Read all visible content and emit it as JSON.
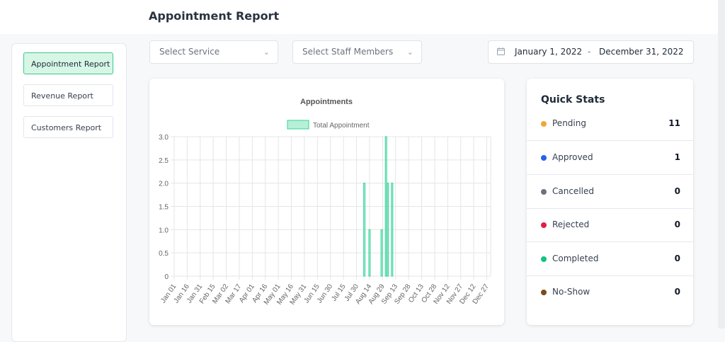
{
  "page": {
    "title": "Appointment Report"
  },
  "sidebar": {
    "items": [
      {
        "label": "Appointment Report",
        "active": true
      },
      {
        "label": "Revenue Report",
        "active": false
      },
      {
        "label": "Customers Report",
        "active": false
      }
    ]
  },
  "filters": {
    "service_placeholder": "Select Service",
    "staff_placeholder": "Select Staff Members",
    "date_start": "January 1, 2022",
    "date_separator": "-",
    "date_end": "December 31, 2022"
  },
  "quick_stats": {
    "title": "Quick Stats",
    "items": [
      {
        "label": "Pending",
        "value": "11",
        "color": "#f0a53a"
      },
      {
        "label": "Approved",
        "value": "1",
        "color": "#2563eb"
      },
      {
        "label": "Cancelled",
        "value": "0",
        "color": "#6b7280"
      },
      {
        "label": "Rejected",
        "value": "0",
        "color": "#e11d48"
      },
      {
        "label": "Completed",
        "value": "0",
        "color": "#10c47f"
      },
      {
        "label": "No-Show",
        "value": "0",
        "color": "#7b4a1e"
      }
    ]
  },
  "chart_data": {
    "type": "bar",
    "title": "Appointments",
    "series": [
      {
        "name": "Total Appointment",
        "color": "#34d399",
        "fill": "#b7f0d8",
        "points": [
          {
            "x": "2022-08-08",
            "y": 2
          },
          {
            "x": "2022-08-14",
            "y": 1
          },
          {
            "x": "2022-08-28",
            "y": 1
          },
          {
            "x": "2022-09-02",
            "y": 3
          },
          {
            "x": "2022-09-04",
            "y": 2
          },
          {
            "x": "2022-09-09",
            "y": 2
          }
        ]
      }
    ],
    "x_range": [
      "2022-01-01",
      "2022-12-31"
    ],
    "x_tick_labels": [
      "Jan 01",
      "Jan 16",
      "Jan 31",
      "Feb 15",
      "Mar 02",
      "Mar 17",
      "Apr 01",
      "Apr 16",
      "May 01",
      "May 16",
      "May 31",
      "Jun 15",
      "Jun 30",
      "Jul 15",
      "Jul 30",
      "Aug 14",
      "Aug 29",
      "Sep 13",
      "Sep 28",
      "Oct 13",
      "Oct 28",
      "Nov 12",
      "Nov 27",
      "Dec 12",
      "Dec 27"
    ],
    "y_ticks": [
      "0",
      "0.5",
      "1.0",
      "1.5",
      "2.0",
      "2.5",
      "3.0"
    ],
    "ylim": [
      0,
      3
    ],
    "grid": true,
    "legend_position": "top"
  }
}
